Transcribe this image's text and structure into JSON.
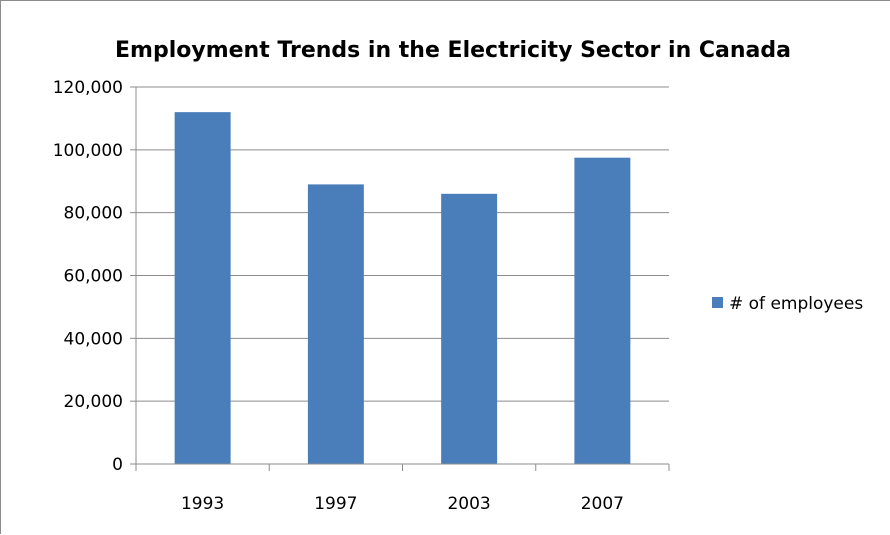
{
  "chart_data": {
    "type": "bar",
    "title": "Employment Trends in the Electricity Sector in Canada",
    "xlabel": "",
    "ylabel": "",
    "categories": [
      "1993",
      "1997",
      "2003",
      "2007"
    ],
    "series": [
      {
        "name": "# of employees",
        "values": [
          112000,
          89000,
          86000,
          97500
        ],
        "color": "#4a7ebb"
      }
    ],
    "ylim": [
      0,
      120000
    ],
    "yticks": [
      0,
      20000,
      40000,
      60000,
      80000,
      100000,
      120000
    ],
    "ytick_labels": [
      "0",
      "20,000",
      "40,000",
      "60,000",
      "80,000",
      "100,000",
      "120,000"
    ],
    "grid": true,
    "legend_position": "right"
  }
}
